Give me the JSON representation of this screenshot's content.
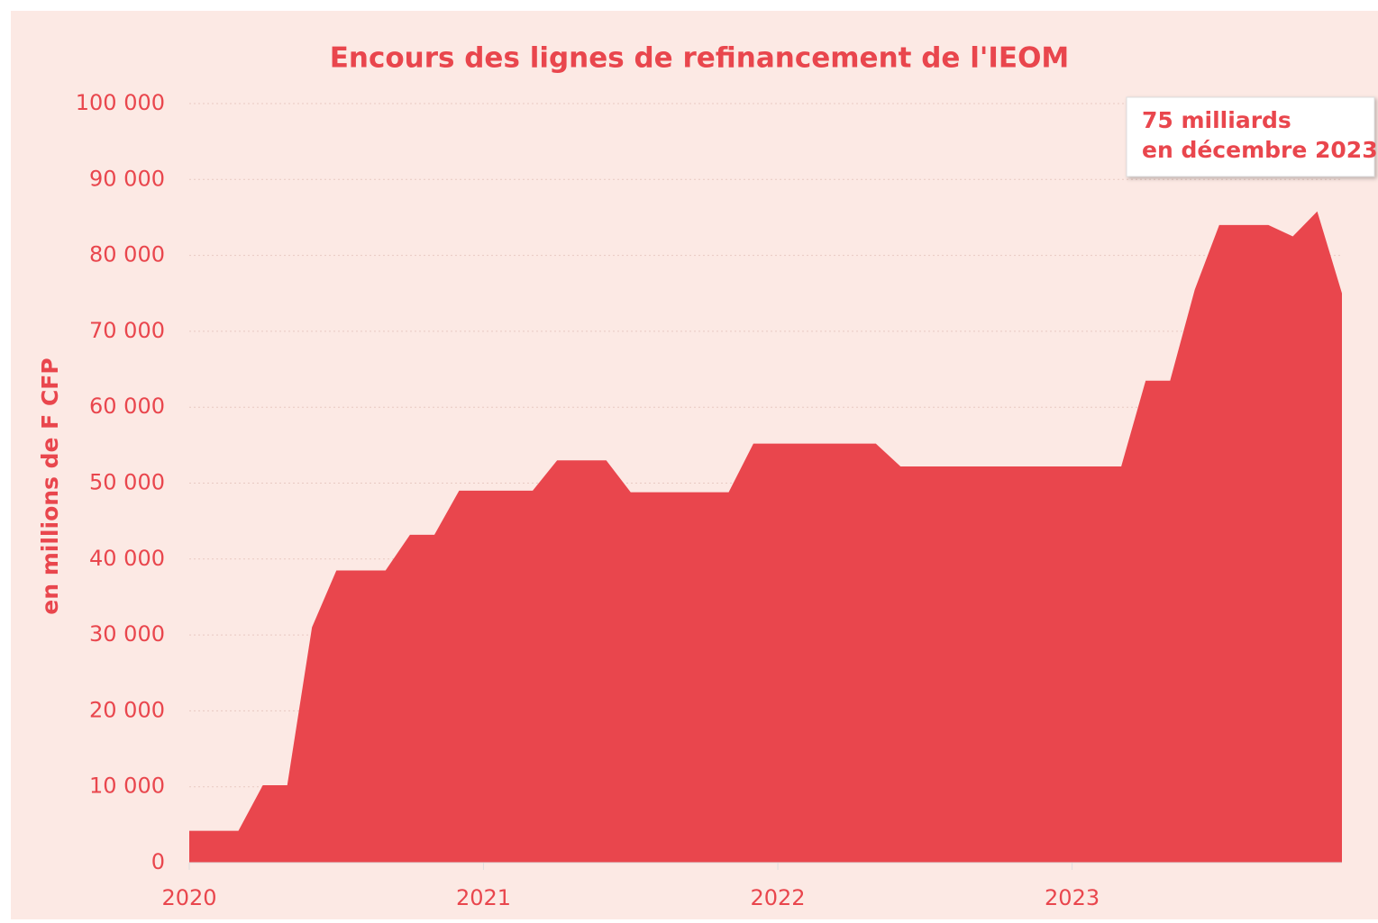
{
  "chart_data": {
    "type": "area",
    "title": "Encours des lignes de refinancement de l'IEOM",
    "y_label": "en millions de F CFP",
    "annotation": [
      "75 milliards",
      "en décembre 2023"
    ],
    "x": [
      2020,
      2020.083,
      2020.167,
      2020.25,
      2020.333,
      2020.417,
      2020.5,
      2020.583,
      2020.667,
      2020.75,
      2020.833,
      2020.917,
      2021,
      2021.083,
      2021.167,
      2021.25,
      2021.333,
      2021.417,
      2021.5,
      2021.583,
      2021.667,
      2021.75,
      2021.833,
      2021.917,
      2022,
      2022.083,
      2022.167,
      2022.25,
      2022.333,
      2022.417,
      2022.5,
      2022.583,
      2022.667,
      2022.75,
      2022.833,
      2022.917,
      2023,
      2023.083,
      2023.167,
      2023.25,
      2023.333,
      2023.417,
      2023.5,
      2023.583,
      2023.667,
      2023.75,
      2023.833,
      2023.917
    ],
    "series": [
      {
        "color": "#e9464d",
        "values": [
          4200,
          4200,
          4200,
          10200,
          10200,
          31000,
          38500,
          38500,
          38500,
          43200,
          43200,
          49000,
          49000,
          49000,
          49000,
          53000,
          53000,
          53000,
          48800,
          48800,
          48800,
          48800,
          48800,
          55200,
          55200,
          55200,
          55200,
          55200,
          55200,
          52200,
          52200,
          52200,
          52200,
          52200,
          52200,
          52200,
          52200,
          52200,
          52200,
          63500,
          63500,
          75500,
          84000,
          84000,
          84000,
          82500,
          85800,
          75000
        ]
      }
    ],
    "xlim": [
      2020,
      2023.917
    ],
    "xticks": [
      2020,
      2021,
      2022,
      2023
    ],
    "ylim": [
      0,
      100000
    ],
    "yticks": [
      0,
      {
        "value": 10000,
        "label": "10 000"
      },
      {
        "value": 20000,
        "label": "20 000"
      },
      {
        "value": 30000,
        "label": "30 000"
      },
      {
        "value": 40000,
        "label": "40 000"
      },
      {
        "value": 50000,
        "label": "50 000"
      },
      {
        "value": 60000,
        "label": "60 000"
      },
      {
        "value": 70000,
        "label": "70 000"
      },
      {
        "value": 80000,
        "label": "80 000"
      },
      {
        "value": 90000,
        "label": "90 000"
      },
      {
        "value": 100000,
        "label": "100 000"
      }
    ],
    "grid": true
  }
}
